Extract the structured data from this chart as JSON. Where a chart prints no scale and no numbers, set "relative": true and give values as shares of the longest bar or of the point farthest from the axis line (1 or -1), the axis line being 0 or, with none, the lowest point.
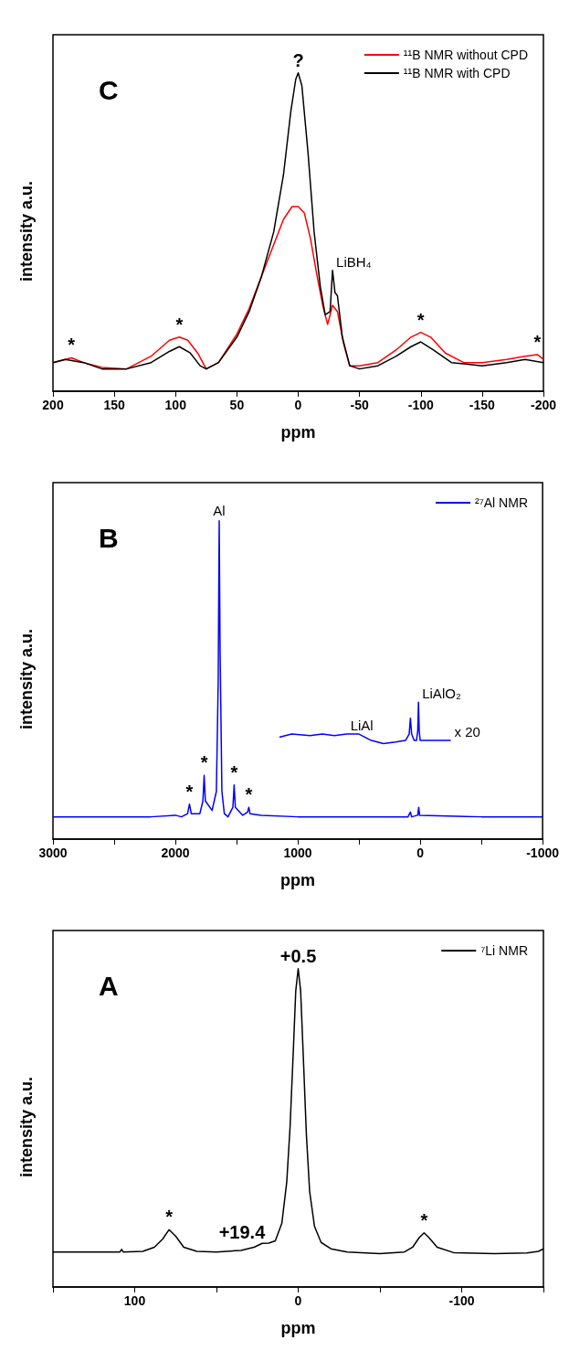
{
  "chart_data": [
    {
      "type": "line",
      "xlabel": "ppm",
      "ylabel": "intensity a.u.",
      "relative": true,
      "tick_labels": "x",
      "legend": "top right",
      "grid": false,
      "marker": "none",
      "line_style": "solid",
      "xlim": [
        200,
        -200
      ],
      "xticks": [
        200,
        150,
        100,
        50,
        0,
        -50,
        -100,
        -150,
        -200
      ],
      "annotations": [
        "C",
        {
          "text": "?",
          "x": 0,
          "y": 1
        },
        {
          "text": "LiBH₄",
          "x": -28,
          "y": 0.38
        },
        {
          "text": "*",
          "x": 185,
          "y": 0.105
        },
        {
          "text": "*",
          "x": 97,
          "y": 0.17
        },
        {
          "text": "*",
          "x": -100,
          "y": 0.185
        },
        {
          "text": "*",
          "x": -195,
          "y": 0.115
        }
      ],
      "series": [
        {
          "name": "¹¹B NMR without CPD",
          "color": "#ff0000",
          "x": [
            200,
            190,
            185,
            175,
            160,
            140,
            120,
            105,
            97,
            90,
            82,
            75,
            65,
            50,
            40,
            30,
            20,
            12,
            5,
            0,
            -5,
            -10,
            -15,
            -20,
            -24,
            -28,
            -32,
            -37,
            -42,
            -50,
            -65,
            -80,
            -92,
            -100,
            -108,
            -120,
            -135,
            -150,
            -170,
            -185,
            -195,
            -200
          ],
          "values": [
            0.09,
            0.1,
            0.105,
            0.09,
            0.075,
            0.07,
            0.11,
            0.16,
            0.17,
            0.16,
            0.12,
            0.07,
            0.09,
            0.18,
            0.26,
            0.36,
            0.46,
            0.54,
            0.58,
            0.58,
            0.56,
            0.48,
            0.37,
            0.27,
            0.21,
            0.27,
            0.25,
            0.15,
            0.08,
            0.08,
            0.09,
            0.13,
            0.17,
            0.185,
            0.17,
            0.12,
            0.09,
            0.09,
            0.1,
            0.11,
            0.115,
            0.1
          ]
        },
        {
          "name": "¹¹B NMR with CPD",
          "color": "#000000",
          "x": [
            200,
            190,
            175,
            160,
            140,
            120,
            105,
            97,
            88,
            80,
            75,
            65,
            50,
            40,
            30,
            20,
            12,
            6,
            2,
            0,
            -3,
            -8,
            -13,
            -18,
            -22,
            -26,
            -28,
            -30,
            -32,
            -36,
            -42,
            -50,
            -65,
            -80,
            -92,
            -100,
            -110,
            -125,
            -150,
            -170,
            -185,
            -200
          ],
          "values": [
            0.09,
            0.1,
            0.09,
            0.07,
            0.07,
            0.09,
            0.125,
            0.14,
            0.12,
            0.08,
            0.07,
            0.09,
            0.17,
            0.25,
            0.36,
            0.5,
            0.68,
            0.88,
            0.98,
            1,
            0.96,
            0.75,
            0.5,
            0.33,
            0.24,
            0.25,
            0.38,
            0.31,
            0.3,
            0.17,
            0.08,
            0.07,
            0.08,
            0.11,
            0.14,
            0.155,
            0.13,
            0.09,
            0.08,
            0.09,
            0.1,
            0.09
          ]
        }
      ]
    },
    {
      "type": "line",
      "xlabel": "ppm",
      "ylabel": "intensity a.u.",
      "relative": true,
      "tick_labels": "x",
      "legend": "top right",
      "grid": false,
      "marker": "none",
      "line_style": "solid",
      "xlim": [
        3000,
        -1000
      ],
      "xticks": [
        3000,
        {
          "value": 2500,
          "label": null
        },
        2000,
        {
          "value": 1500,
          "label": null
        },
        1000,
        {
          "value": 500,
          "label": null
        },
        0,
        {
          "value": -500,
          "label": null
        },
        -1000
      ],
      "annotations": [
        "B",
        {
          "text": "Al",
          "x": 1642,
          "y": 1
        },
        {
          "text": "LiAlO₂",
          "x": 14,
          "y": 0.43
        },
        {
          "text": "LiAl",
          "x": 600,
          "y": 0.33
        },
        {
          "text": "x 20",
          "x": -250,
          "y": 0.31
        },
        {
          "text": "*",
          "x": 1885,
          "y": 0.11
        },
        {
          "text": "*",
          "x": 1765,
          "y": 0.2
        },
        {
          "text": "*",
          "x": 1520,
          "y": 0.17
        },
        {
          "text": "*",
          "x": 1400,
          "y": 0.1
        }
      ],
      "series": [
        {
          "name": "²⁷Al NMR",
          "color": "#0000ff",
          "x": [
            3000,
            2200,
            2000,
            1950,
            1900,
            1885,
            1870,
            1800,
            1775,
            1765,
            1755,
            1700,
            1665,
            1650,
            1642,
            1635,
            1620,
            1600,
            1570,
            1530,
            1520,
            1510,
            1450,
            1410,
            1400,
            1390,
            1300,
            1000,
            500,
            100,
            80,
            70,
            20,
            12,
            5,
            -500,
            -1000
          ],
          "values": [
            0.07,
            0.07,
            0.075,
            0.07,
            0.08,
            0.11,
            0.08,
            0.08,
            0.12,
            0.2,
            0.12,
            0.09,
            0.15,
            0.5,
            1,
            0.6,
            0.15,
            0.08,
            0.07,
            0.1,
            0.17,
            0.1,
            0.075,
            0.085,
            0.1,
            0.08,
            0.075,
            0.07,
            0.07,
            0.07,
            0.085,
            0.07,
            0.075,
            0.1,
            0.075,
            0.07,
            0.07
          ]
        },
        {
          "color": "#0000ff",
          "x": [
            1150,
            1050,
            900,
            800,
            700,
            600,
            500,
            450,
            400,
            300,
            200,
            120,
            90,
            80,
            70,
            50,
            30,
            20,
            14,
            8,
            0,
            -100,
            -200,
            -250
          ],
          "values": [
            0.32,
            0.33,
            0.325,
            0.33,
            0.325,
            0.33,
            0.33,
            0.32,
            0.31,
            0.3,
            0.305,
            0.31,
            0.33,
            0.38,
            0.33,
            0.31,
            0.31,
            0.34,
            0.43,
            0.34,
            0.31,
            0.31,
            0.31,
            0.31
          ]
        }
      ]
    },
    {
      "type": "line",
      "xlabel": "ppm",
      "ylabel": "intensity a.u.",
      "relative": true,
      "tick_labels": "x",
      "legend": "top right",
      "grid": false,
      "marker": "none",
      "line_style": "solid",
      "xlim": [
        150,
        -150
      ],
      "xticks": [
        {
          "value": 150,
          "label": null
        },
        100,
        {
          "value": 50,
          "label": null
        },
        0,
        {
          "value": -50,
          "label": null
        },
        -100,
        {
          "value": -150,
          "label": null
        }
      ],
      "annotations": [
        "A",
        {
          "text": "+0.5",
          "x": 0,
          "y": 1
        },
        {
          "text": "+19.4",
          "x": 18,
          "y": 0.138
        },
        {
          "text": "*",
          "x": 79,
          "y": 0.18
        },
        {
          "text": "*",
          "x": -77,
          "y": 0.17
        }
      ],
      "series": [
        {
          "name": "⁷Li NMR",
          "color": "#000000",
          "x": [
            150,
            120,
            109,
            108,
            107,
            95,
            88,
            83,
            79,
            75,
            70,
            62,
            50,
            35,
            27,
            22,
            18,
            14,
            10,
            7,
            5,
            3,
            1.5,
            0,
            -1.5,
            -3,
            -5,
            -7,
            -10,
            -14,
            -20,
            -30,
            -50,
            -65,
            -70,
            -74,
            -77,
            -80,
            -85,
            -95,
            -120,
            -140,
            -147,
            -150
          ],
          "values": [
            0.11,
            0.11,
            0.11,
            0.118,
            0.11,
            0.112,
            0.125,
            0.15,
            0.18,
            0.16,
            0.125,
            0.112,
            0.11,
            0.115,
            0.125,
            0.137,
            0.138,
            0.145,
            0.2,
            0.33,
            0.5,
            0.74,
            0.93,
            1,
            0.93,
            0.74,
            0.48,
            0.3,
            0.19,
            0.14,
            0.12,
            0.11,
            0.105,
            0.11,
            0.125,
            0.155,
            0.17,
            0.155,
            0.125,
            0.108,
            0.105,
            0.107,
            0.112,
            0.12
          ]
        }
      ]
    }
  ]
}
